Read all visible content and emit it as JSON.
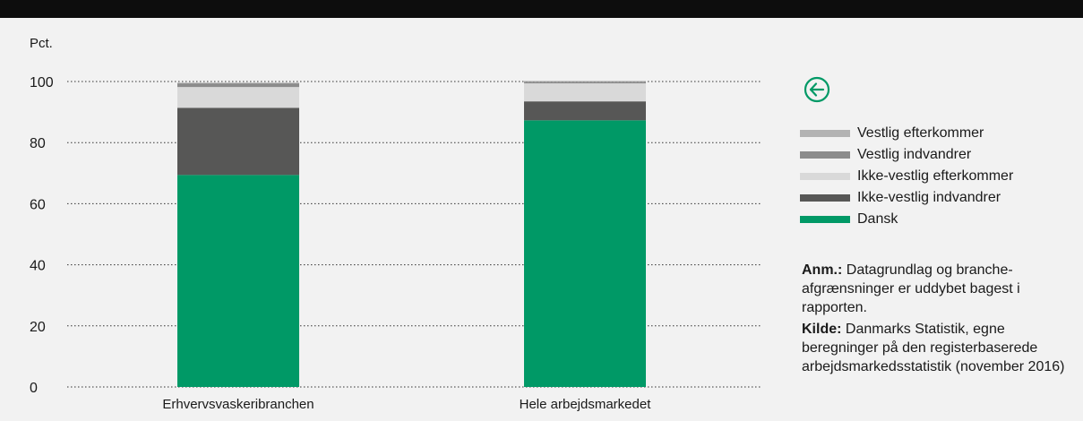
{
  "y_unit_label": "Pct.",
  "legend": [
    {
      "label": "Vestlig efterkommer",
      "color": "#b3b3b3"
    },
    {
      "label": "Vestlig indvandrer",
      "color": "#8c8c8c"
    },
    {
      "label": "Ikke-vestlig efterkommer",
      "color": "#d9d9d9"
    },
    {
      "label": "Ikke-vestlig indvandrer",
      "color": "#575756"
    },
    {
      "label": "Dansk",
      "color": "#009966"
    }
  ],
  "note": {
    "anm_label": "Anm.:",
    "anm_text": " Datagrundlag og branche-afgrænsninger er uddybet bagest i rapporten.",
    "kilde_label": "Kilde:",
    "kilde_text": " Danmarks Statistik, egne beregninger på den registerbaserede arbejdsmarkedsstatistik (november 2016)"
  },
  "chart_data": {
    "type": "bar",
    "stacked": true,
    "categories": [
      "Erhvervsvaskeribranchen",
      "Hele arbejdsmarkedet"
    ],
    "series": [
      {
        "name": "Dansk",
        "color": "#009966",
        "values": [
          69.4,
          87.3
        ]
      },
      {
        "name": "Ikke-vestlig indvandrer",
        "color": "#575756",
        "values": [
          22.0,
          6.2
        ]
      },
      {
        "name": "Ikke-vestlig efterkommer",
        "color": "#d9d9d9",
        "values": [
          6.8,
          5.9
        ]
      },
      {
        "name": "Vestlig indvandrer",
        "color": "#8c8c8c",
        "values": [
          1.2,
          0.5
        ]
      },
      {
        "name": "Vestlig efterkommer",
        "color": "#b3b3b3",
        "values": [
          0.2,
          0.3
        ]
      }
    ],
    "ylabel": "Pct.",
    "ylim": [
      0,
      100
    ],
    "yticks": [
      0,
      20,
      40,
      60,
      80,
      100
    ],
    "grid": true,
    "legend_position": "right"
  }
}
